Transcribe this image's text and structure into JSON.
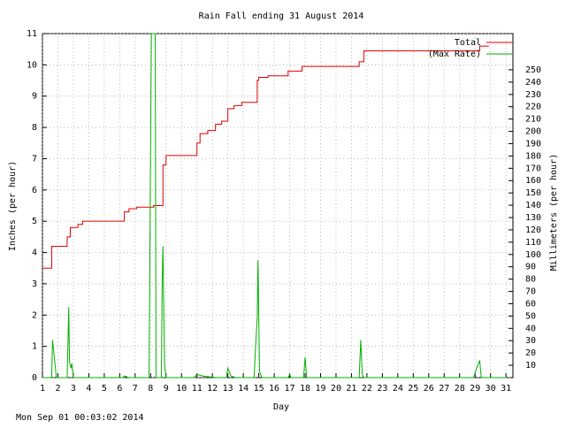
{
  "chart_data": {
    "type": "line",
    "title": "Rain Fall ending 31 August 2014",
    "xlabel": "Day",
    "ylabel": "Inches (per hour)",
    "y2label": "Millimeters (per hour)",
    "footer": "Mon Sep 01 00:03:02 2014",
    "xlim": [
      1,
      31.45
    ],
    "xticks": [
      1,
      2,
      3,
      4,
      5,
      6,
      7,
      8,
      9,
      10,
      11,
      12,
      13,
      14,
      15,
      16,
      17,
      18,
      19,
      20,
      21,
      22,
      23,
      24,
      25,
      26,
      27,
      28,
      29,
      30,
      31
    ],
    "ylim": [
      0,
      11
    ],
    "yticks": [
      0,
      1,
      2,
      3,
      4,
      5,
      6,
      7,
      8,
      9,
      10,
      11
    ],
    "y2lim": [
      0,
      279.4
    ],
    "y2ticks": [
      10,
      20,
      30,
      40,
      50,
      60,
      70,
      80,
      90,
      100,
      110,
      120,
      130,
      140,
      150,
      160,
      170,
      180,
      190,
      200,
      210,
      220,
      230,
      240,
      250
    ],
    "grid": true,
    "legend": "top-right",
    "series": [
      {
        "name": "Total",
        "color": "#e00000",
        "x": [
          1,
          1.6,
          1.6,
          2.6,
          2.6,
          2.8,
          2.8,
          3.3,
          3.3,
          3.6,
          3.6,
          6.3,
          6.3,
          6.6,
          6.6,
          7.1,
          7.1,
          8.2,
          8.2,
          8.8,
          8.8,
          9.0,
          9.0,
          11.0,
          11.0,
          11.2,
          11.2,
          11.7,
          11.7,
          12.2,
          12.2,
          12.6,
          12.6,
          13.0,
          13.0,
          13.4,
          13.4,
          13.9,
          13.9,
          14.9,
          14.9,
          15.0,
          15.0,
          15.6,
          15.6,
          16.9,
          16.9,
          17.8,
          17.8,
          21.5,
          21.5,
          21.8,
          21.8,
          29.3,
          29.3,
          29.9
        ],
        "values": [
          3.5,
          3.5,
          4.2,
          4.2,
          4.5,
          4.5,
          4.8,
          4.8,
          4.9,
          4.9,
          5.0,
          5.0,
          5.3,
          5.3,
          5.4,
          5.4,
          5.45,
          5.45,
          5.5,
          5.5,
          6.8,
          6.8,
          7.1,
          7.1,
          7.5,
          7.5,
          7.8,
          7.8,
          7.9,
          7.9,
          8.1,
          8.1,
          8.2,
          8.2,
          8.6,
          8.6,
          8.7,
          8.7,
          8.8,
          8.8,
          9.5,
          9.5,
          9.6,
          9.6,
          9.65,
          9.65,
          9.8,
          9.8,
          9.95,
          9.95,
          10.1,
          10.1,
          10.45,
          10.45,
          10.6,
          10.6
        ]
      },
      {
        "name": "(Max Rate)",
        "color": "#00b000",
        "x": [
          1.0,
          1.6,
          1.65,
          1.8,
          1.9,
          2.6,
          2.65,
          2.7,
          2.75,
          2.85,
          2.9,
          3.0,
          6.2,
          6.3,
          6.6,
          7.9,
          8.05,
          8.3,
          8.35,
          8.7,
          8.75,
          8.8,
          8.9,
          9.0,
          10.8,
          11.0,
          11.4,
          12.2,
          12.9,
          13.0,
          13.2,
          13.5,
          14.7,
          14.8,
          14.9,
          14.95,
          15.05,
          15.2,
          16.9,
          17.0,
          17.1,
          17.9,
          18.0,
          18.1,
          21.5,
          21.6,
          21.7,
          21.8,
          28.9,
          29.1,
          29.3,
          29.4,
          31
        ],
        "values": [
          0,
          0,
          1.2,
          0.5,
          0,
          0,
          1.1,
          2.25,
          0.5,
          0.3,
          0.45,
          0,
          0,
          0.05,
          0,
          0,
          11,
          11,
          0,
          0,
          3.1,
          4.2,
          0.4,
          0,
          0,
          0.1,
          0.05,
          0,
          0,
          0.3,
          0.05,
          0,
          0,
          1.05,
          1.9,
          3.75,
          0.2,
          0,
          0,
          0.1,
          0,
          0,
          0.65,
          0,
          0,
          1.2,
          0.1,
          0,
          0,
          0.3,
          0.55,
          0,
          0
        ]
      }
    ]
  }
}
